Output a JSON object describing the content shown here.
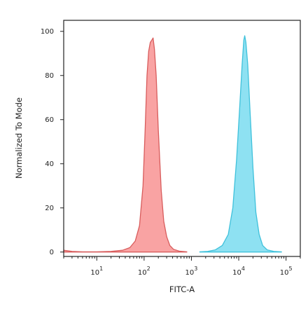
{
  "chart_data": {
    "type": "area",
    "xlabel": "FITC-A",
    "ylabel": "Normalized To Mode",
    "x_scale": "log",
    "xlim": [
      2,
      200000
    ],
    "ylim": [
      -2,
      105
    ],
    "x_ticks": [
      {
        "base": "10",
        "exp": "1",
        "value": 10
      },
      {
        "base": "10",
        "exp": "2",
        "value": 100
      },
      {
        "base": "10",
        "exp": "3",
        "value": 1000
      },
      {
        "base": "10",
        "exp": "4",
        "value": 10000
      },
      {
        "base": "10",
        "exp": "5",
        "value": 100000
      }
    ],
    "y_ticks": [
      "0",
      "20",
      "40",
      "60",
      "80",
      "100"
    ],
    "grid": false,
    "series": [
      {
        "fill": "#f9a3a3",
        "stroke": "#d85c5c",
        "points": [
          [
            2,
            0.8
          ],
          [
            3,
            0.3
          ],
          [
            5,
            0.1
          ],
          [
            10,
            0.1
          ],
          [
            20,
            0.3
          ],
          [
            35,
            0.8
          ],
          [
            50,
            2
          ],
          [
            65,
            5
          ],
          [
            80,
            12
          ],
          [
            95,
            30
          ],
          [
            105,
            55
          ],
          [
            115,
            80
          ],
          [
            125,
            91
          ],
          [
            135,
            95
          ],
          [
            145,
            96
          ],
          [
            155,
            97
          ],
          [
            165,
            92
          ],
          [
            180,
            80
          ],
          [
            200,
            55
          ],
          [
            230,
            28
          ],
          [
            260,
            14
          ],
          [
            300,
            7
          ],
          [
            350,
            3
          ],
          [
            420,
            1.2
          ],
          [
            550,
            0.4
          ],
          [
            800,
            0.1
          ]
        ]
      },
      {
        "fill": "#8ee1f2",
        "stroke": "#3fc1db",
        "points": [
          [
            1500,
            0.1
          ],
          [
            2200,
            0.3
          ],
          [
            3200,
            1
          ],
          [
            4500,
            3
          ],
          [
            6000,
            8
          ],
          [
            7500,
            20
          ],
          [
            9000,
            42
          ],
          [
            10500,
            66
          ],
          [
            11800,
            85
          ],
          [
            12800,
            96
          ],
          [
            13400,
            98
          ],
          [
            14200,
            95
          ],
          [
            15500,
            85
          ],
          [
            17500,
            62
          ],
          [
            20000,
            38
          ],
          [
            23000,
            18
          ],
          [
            27000,
            8
          ],
          [
            32000,
            3
          ],
          [
            40000,
            1
          ],
          [
            55000,
            0.3
          ],
          [
            80000,
            0.1
          ]
        ]
      }
    ]
  }
}
